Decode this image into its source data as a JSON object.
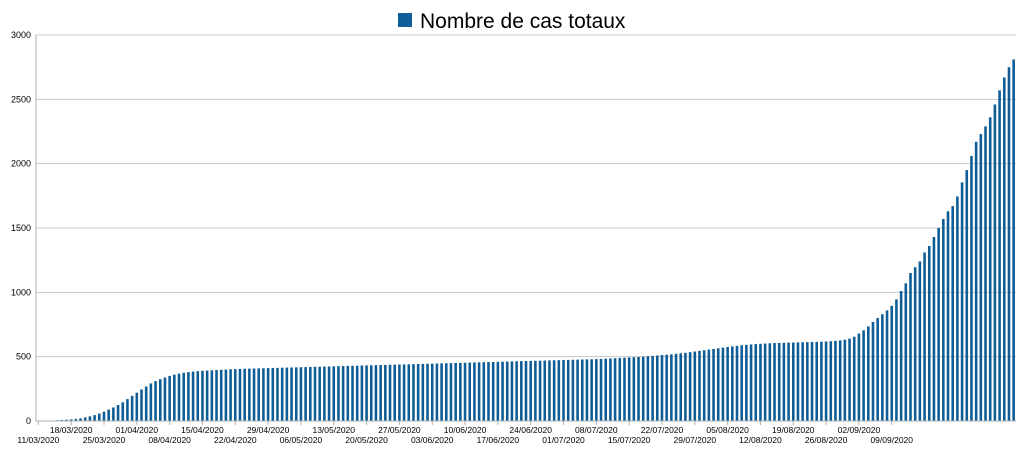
{
  "chart_data": {
    "type": "bar",
    "title": "",
    "xlabel": "",
    "ylabel": "",
    "ylim": [
      0,
      3000
    ],
    "yticks": [
      0,
      500,
      1000,
      1500,
      2000,
      2500,
      3000
    ],
    "grid": true,
    "legend": "top-center",
    "bar_color": "#0e5d96",
    "x_start": "11/03/2020",
    "x_end": "13/09/2020",
    "x_ticks_row1": [
      "18/03/2020",
      "01/04/2020",
      "15/04/2020",
      "29/04/2020",
      "13/05/2020",
      "27/05/2020",
      "10/06/2020",
      "24/06/2020",
      "08/07/2020",
      "22/07/2020",
      "05/08/2020",
      "19/08/2020",
      "02/09/2020"
    ],
    "x_ticks_row2": [
      "11/03/2020",
      "25/03/2020",
      "08/04/2020",
      "22/04/2020",
      "06/05/2020",
      "20/05/2020",
      "03/06/2020",
      "17/06/2020",
      "01/07/2020",
      "15/07/2020",
      "29/07/2020",
      "12/08/2020",
      "26/08/2020",
      "09/09/2020"
    ],
    "series": [
      {
        "name": "Nombre de cas totaux",
        "color": "#0e5d96",
        "values": [
          1,
          2,
          3,
          4,
          6,
          8,
          10,
          12,
          16,
          20,
          28,
          36,
          46,
          58,
          72,
          88,
          105,
          124,
          145,
          170,
          195,
          220,
          245,
          268,
          292,
          310,
          325,
          338,
          350,
          360,
          368,
          375,
          380,
          384,
          387,
          390,
          392,
          394,
          396,
          398,
          400,
          402,
          403,
          405,
          406,
          407,
          408,
          409,
          410,
          411,
          412,
          413,
          414,
          415,
          416,
          417,
          418,
          419,
          420,
          421,
          422,
          423,
          424,
          425,
          426,
          427,
          428,
          429,
          430,
          431,
          432,
          433,
          434,
          435,
          436,
          437,
          438,
          439,
          440,
          441,
          442,
          443,
          444,
          445,
          446,
          447,
          448,
          449,
          450,
          451,
          452,
          453,
          454,
          455,
          456,
          457,
          458,
          459,
          460,
          461,
          462,
          463,
          464,
          465,
          466,
          467,
          468,
          469,
          470,
          471,
          472,
          473,
          474,
          475,
          476,
          477,
          478,
          479,
          480,
          481,
          482,
          484,
          486,
          488,
          490,
          492,
          494,
          496,
          498,
          500,
          503,
          506,
          509,
          512,
          515,
          518,
          522,
          526,
          530,
          535,
          540,
          545,
          550,
          555,
          560,
          565,
          570,
          575,
          580,
          584,
          588,
          592,
          595,
          598,
          600,
          602,
          604,
          606,
          607,
          608,
          609,
          610,
          611,
          612,
          613,
          614,
          615,
          616,
          618,
          620,
          623,
          627,
          632,
          640,
          655,
          680,
          705,
          735,
          770,
          800,
          830,
          860,
          895,
          945,
          1010,
          1070,
          1150,
          1195,
          1240,
          1310,
          1360,
          1430,
          1500,
          1570,
          1630,
          1670,
          1745,
          1855,
          1950,
          2060,
          2170,
          2230,
          2290,
          2360,
          2460,
          2570,
          2670,
          2750,
          2810
        ]
      }
    ]
  }
}
